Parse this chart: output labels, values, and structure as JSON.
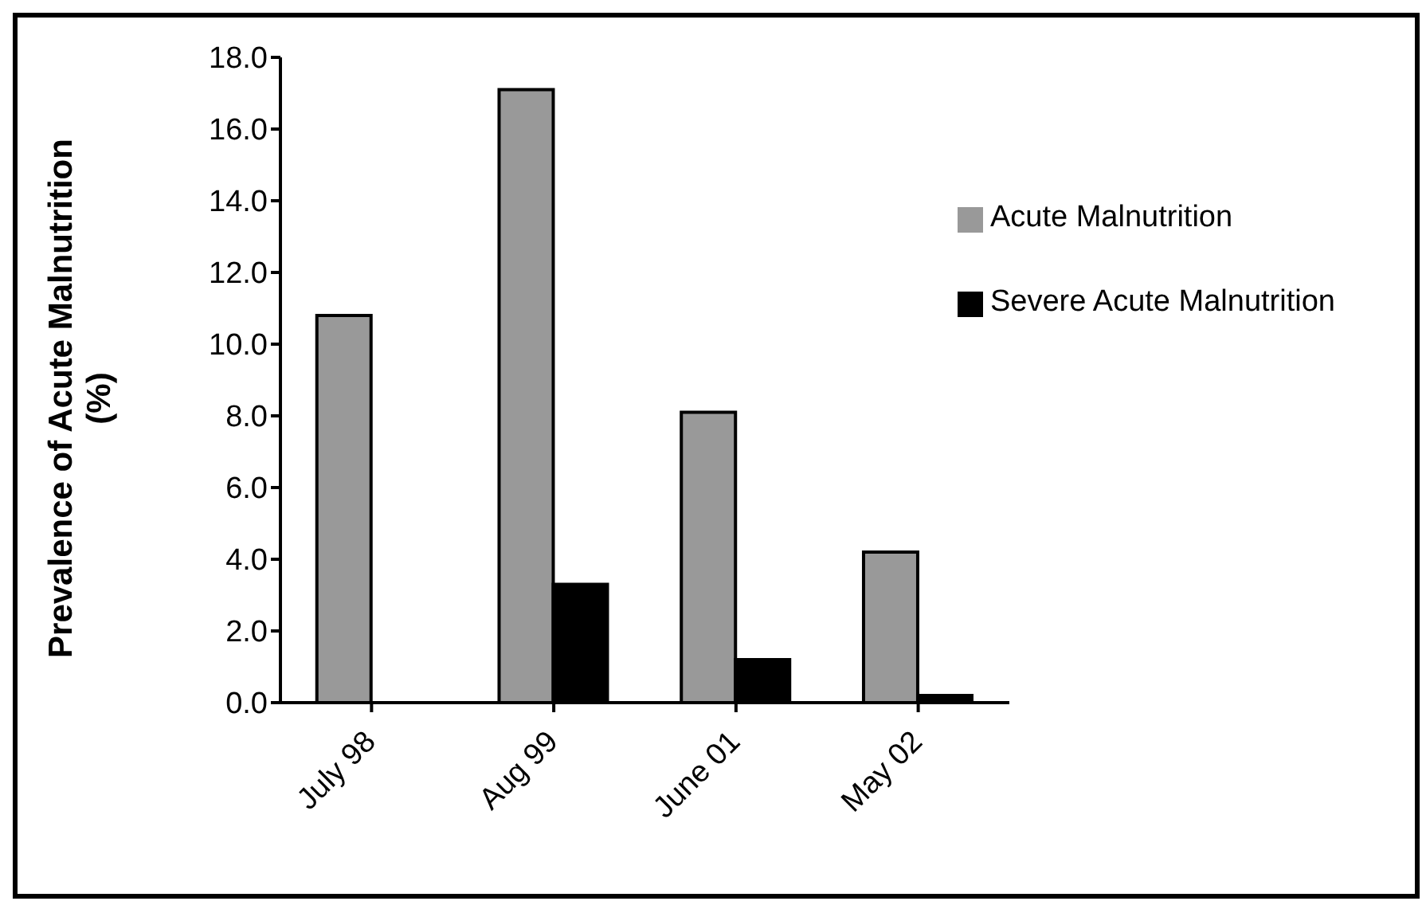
{
  "chart_data": {
    "type": "bar",
    "ylabel": "Prevalence of Acute Malnutrition (%)",
    "categories": [
      "July 98",
      "Aug 99",
      "June 01",
      "May 02"
    ],
    "series": [
      {
        "name": "Acute Malnutrition",
        "color": "#999999",
        "values": [
          10.8,
          17.1,
          8.1,
          4.2
        ]
      },
      {
        "name": "Severe Acute Malnutrition",
        "color": "#000000",
        "values": [
          null,
          3.3,
          1.2,
          0.2
        ]
      }
    ],
    "ylim": [
      0,
      18
    ],
    "yticks": [
      {
        "value": 0,
        "label": "0.0"
      },
      {
        "value": 2,
        "label": "2.0"
      },
      {
        "value": 4,
        "label": "4.0"
      },
      {
        "value": 6,
        "label": "6.0"
      },
      {
        "value": 8,
        "label": "8.0"
      },
      {
        "value": 10,
        "label": "10.0"
      },
      {
        "value": 12,
        "label": "12.0"
      },
      {
        "value": 14,
        "label": "14.0"
      },
      {
        "value": 16,
        "label": "16.0"
      },
      {
        "value": 18,
        "label": "18.0"
      }
    ],
    "grid": false,
    "legend": "top right"
  }
}
